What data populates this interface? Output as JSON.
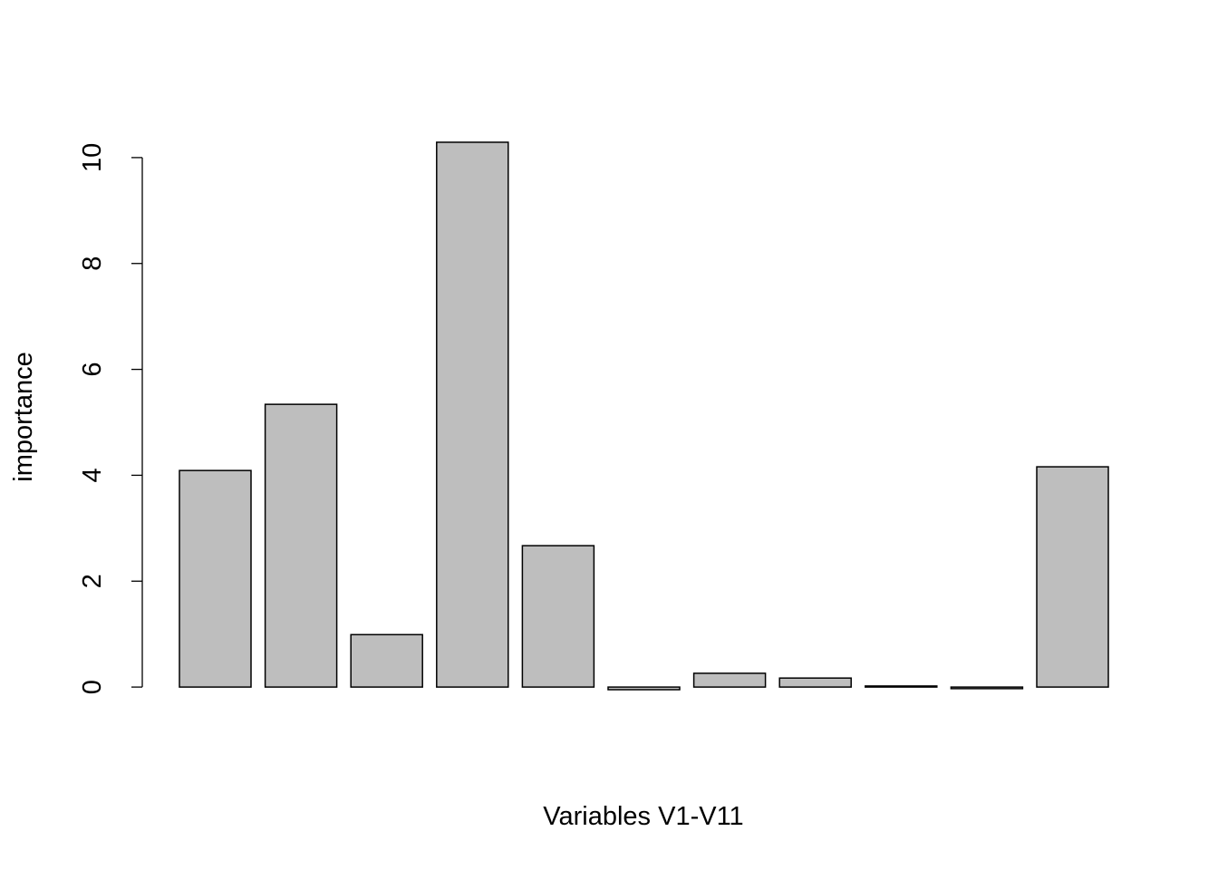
{
  "chart_data": {
    "type": "bar",
    "xlabel": "Variables V1-V11",
    "ylabel": "importance",
    "values": [
      4.09,
      5.34,
      0.99,
      10.29,
      2.67,
      -0.05,
      0.26,
      0.17,
      0.02,
      -0.03,
      4.16
    ],
    "color": "#bebebe",
    "ylim": [
      -0.46,
      10.7
    ],
    "yticks": [
      0,
      2,
      4,
      6,
      8,
      10
    ]
  }
}
